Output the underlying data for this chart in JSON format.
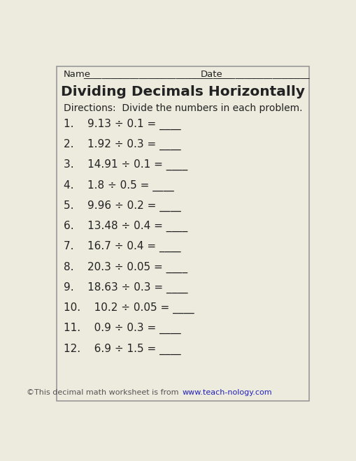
{
  "title": "Dividing Decimals Horizontally",
  "directions": "Directions:  Divide the numbers in each problem.",
  "name_label": "Name",
  "date_label": "Date",
  "name_line": "________________________________",
  "date_line": "____________________",
  "problems": [
    "1.    9.13 ÷ 0.1 = ____",
    "2.    1.92 ÷ 0.3 = ____",
    "3.    14.91 ÷ 0.1 = ____",
    "4.    1.8 ÷ 0.5 = ____",
    "5.    9.96 ÷ 0.2 = ____",
    "6.    13.48 ÷ 0.4 = ____",
    "7.    16.7 ÷ 0.4 = ____",
    "8.    20.3 ÷ 0.05 = ____",
    "9.    18.63 ÷ 0.3 = ____",
    "10.    10.2 ÷ 0.05 = ____",
    "11.    0.9 ÷ 0.3 = ____",
    "12.    6.9 ÷ 1.5 = ____"
  ],
  "footer_normal": "©This decimal math worksheet is from ",
  "footer_link": "www.teach-nology.com",
  "bg_color": "#edeade",
  "border_color": "#999999",
  "text_color": "#222222",
  "title_fontsize": 14.5,
  "directions_fontsize": 10,
  "problem_fontsize": 11,
  "footer_fontsize": 8,
  "link_color": "#2222bb"
}
